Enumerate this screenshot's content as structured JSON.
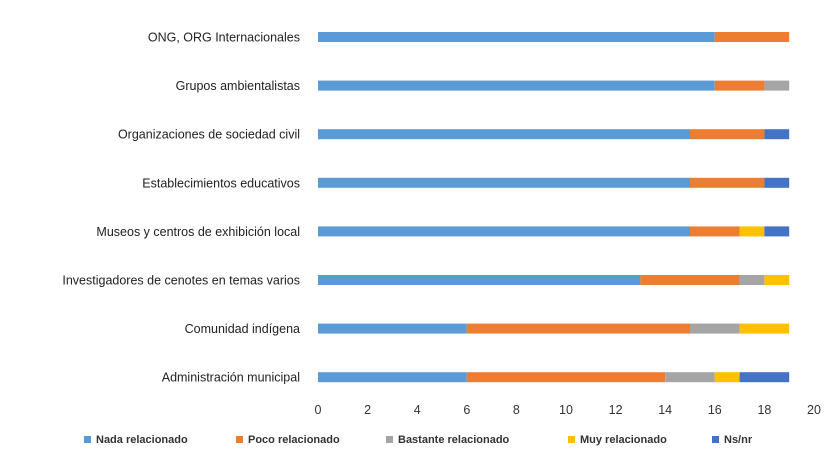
{
  "chart_data": {
    "type": "bar",
    "orientation": "horizontal",
    "stacked": true,
    "categories": [
      "ONG, ORG Internacionales",
      "Grupos ambientalistas",
      "Organizaciones de sociedad civil",
      "Establecimientos educativos",
      "Museos y centros de exhibición local",
      "Investigadores de cenotes en temas varios",
      "Comunidad indígena",
      "Administración municipal"
    ],
    "series": [
      {
        "name": "Nada relacionado",
        "color": "#5b9bd5",
        "values": [
          16,
          16,
          15,
          15,
          15,
          13,
          6,
          6
        ]
      },
      {
        "name": "Poco relacionado",
        "color": "#ed7d31",
        "values": [
          3,
          2,
          3,
          3,
          2,
          4,
          9,
          8
        ]
      },
      {
        "name": "Bastante relacionado",
        "color": "#a5a5a5",
        "values": [
          0,
          1,
          0,
          0,
          0,
          1,
          2,
          2
        ]
      },
      {
        "name": "Muy relacionado",
        "color": "#ffc000",
        "values": [
          0,
          0,
          0,
          0,
          1,
          1,
          2,
          1
        ]
      },
      {
        "name": "Ns/nr",
        "color": "#4472c4",
        "values": [
          0,
          0,
          1,
          1,
          1,
          0,
          0,
          2
        ]
      }
    ],
    "xlim": [
      0,
      20
    ],
    "xticks": [
      0,
      2,
      4,
      6,
      8,
      10,
      12,
      14,
      16,
      18,
      20
    ],
    "grid": false,
    "legend_position": "bottom"
  }
}
